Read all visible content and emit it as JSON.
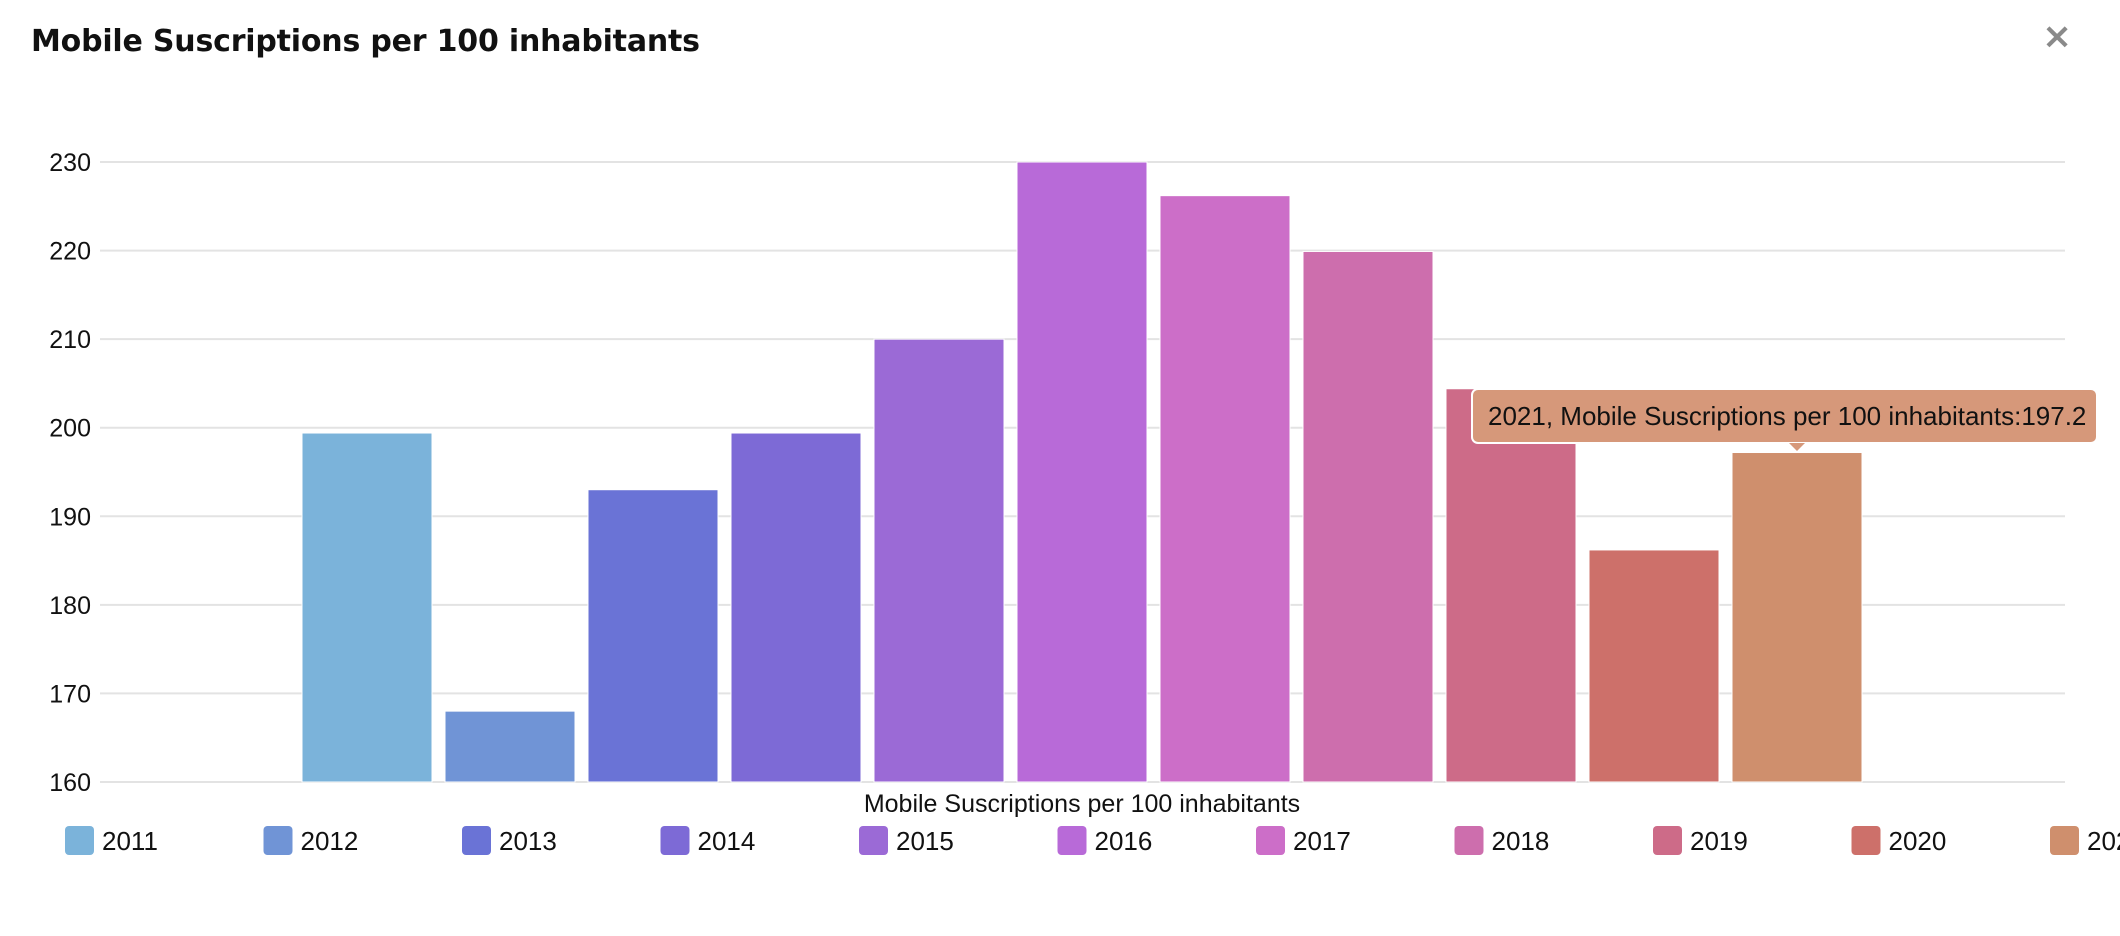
{
  "window": {
    "title": "Mobile Suscriptions per 100 inhabitants",
    "close_icon": "close-icon"
  },
  "chart_data": {
    "type": "bar",
    "title": "Mobile Suscriptions per 100 inhabitants",
    "xlabel": "Mobile Suscriptions per 100 inhabitants",
    "ylabel": "",
    "ylim": [
      160,
      230
    ],
    "yticks": [
      160,
      170,
      180,
      190,
      200,
      210,
      220,
      230
    ],
    "grid": true,
    "legend_position": "bottom",
    "series": [
      {
        "name": "2011",
        "value": 199.4,
        "color": "#7bb3da"
      },
      {
        "name": "2012",
        "value": 168.0,
        "color": "#7094d6"
      },
      {
        "name": "2013",
        "value": 193.0,
        "color": "#6a73d6"
      },
      {
        "name": "2014",
        "value": 199.4,
        "color": "#7d6ad6"
      },
      {
        "name": "2015",
        "value": 210.0,
        "color": "#9b6ad6"
      },
      {
        "name": "2016",
        "value": 230.0,
        "color": "#b86ad8"
      },
      {
        "name": "2017",
        "value": 226.2,
        "color": "#cc6ec8"
      },
      {
        "name": "2018",
        "value": 219.9,
        "color": "#cd6ead"
      },
      {
        "name": "2019",
        "value": 204.4,
        "color": "#cd6b88"
      },
      {
        "name": "2020",
        "value": 186.2,
        "color": "#cd706a"
      },
      {
        "name": "2021",
        "value": 197.2,
        "color": "#cf8f6d"
      }
    ],
    "tooltip": {
      "text": "2021, Mobile Suscriptions per 100 inhabitants:197.2",
      "series_index": 10,
      "background": "#d6987a"
    }
  }
}
